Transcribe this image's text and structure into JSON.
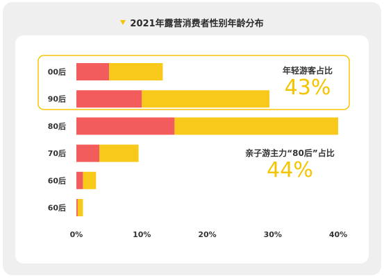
{
  "title": "2021年露营消费者性别年龄分布",
  "colors": {
    "female": "#f25c5c",
    "male": "#f8c81b",
    "highlight": "#f5c400"
  },
  "annotations": [
    {
      "label": "年轻游客占比",
      "value": "43%"
    },
    {
      "label": "亲子游主力“80后”占比",
      "value": "44%"
    }
  ],
  "chart_data": {
    "type": "bar",
    "orientation": "horizontal",
    "stacked": true,
    "categories": [
      "00后",
      "90后",
      "80后",
      "70后",
      "60后",
      "60后"
    ],
    "series": [
      {
        "values": [
          5.0,
          10.0,
          15.0,
          3.5,
          1.0,
          0.2
        ]
      },
      {
        "values": [
          8.2,
          19.5,
          25.0,
          6.0,
          2.0,
          0.8
        ]
      }
    ],
    "xticks": [
      "0%",
      "10%",
      "20%",
      "30%",
      "40%"
    ],
    "xlim": [
      0,
      40
    ],
    "grid": false,
    "legend": "none"
  }
}
